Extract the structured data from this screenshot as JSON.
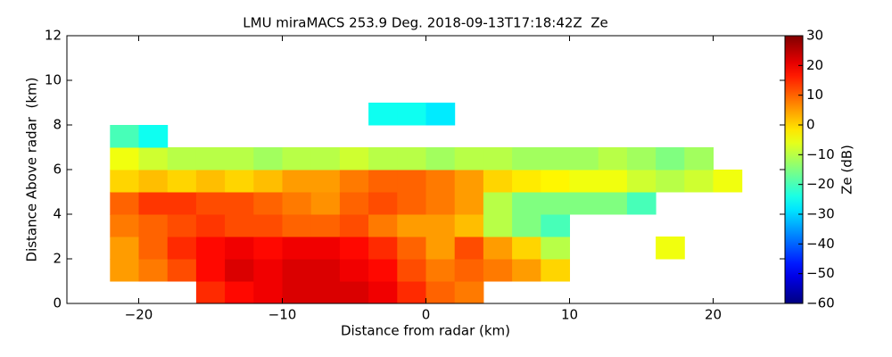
{
  "chart_data": {
    "type": "heatmap",
    "title": "LMU miraMACS 253.9 Deg. 2018-09-13T17:18:42Z  Ze",
    "x_label": "Distance from radar (km)",
    "y_label": "Distance Above radar  (km)",
    "colorbar_label": "Ze (dB)",
    "colormap": "jet",
    "xlim": [
      -25,
      25
    ],
    "xticks": [
      {
        "value": -20,
        "label": "−20"
      },
      {
        "value": -10,
        "label": "−10"
      },
      0,
      10,
      20
    ],
    "ylim": [
      0,
      12
    ],
    "yticks": [
      0,
      2,
      4,
      6,
      8,
      10,
      12
    ],
    "clim": [
      -60,
      30
    ],
    "cticks": [
      {
        "value": -60,
        "label": "−60"
      },
      {
        "value": -50,
        "label": "−50"
      },
      {
        "value": -40,
        "label": "−40"
      },
      {
        "value": -30,
        "label": "−30"
      },
      {
        "value": -20,
        "label": "−20"
      },
      {
        "value": -10,
        "label": "−10"
      },
      0,
      10,
      20,
      30
    ],
    "xbins": [
      -22,
      -20,
      -18,
      -16,
      -14,
      -12,
      -10,
      -8,
      -6,
      -4,
      -2,
      0,
      2,
      4,
      6,
      8,
      10,
      12,
      14,
      16,
      18,
      20,
      22
    ],
    "ybins": [
      0,
      1,
      2,
      3,
      4,
      5,
      6,
      7,
      8,
      9
    ],
    "z": [
      [
        null,
        null,
        null,
        15,
        18,
        20,
        22,
        22,
        22,
        20,
        15,
        10,
        8,
        null,
        null,
        null,
        null,
        null,
        null,
        null,
        null,
        null
      ],
      [
        5,
        8,
        12,
        18,
        22,
        20,
        22,
        22,
        20,
        18,
        12,
        8,
        10,
        8,
        5,
        0,
        null,
        null,
        null,
        null,
        null,
        null
      ],
      [
        5,
        10,
        15,
        18,
        20,
        18,
        20,
        20,
        18,
        15,
        10,
        5,
        12,
        5,
        0,
        -10,
        null,
        null,
        null,
        -5,
        null,
        null
      ],
      [
        8,
        10,
        12,
        14,
        12,
        12,
        10,
        10,
        12,
        8,
        5,
        5,
        2,
        -10,
        -15,
        -20,
        null,
        null,
        null,
        null,
        null,
        null
      ],
      [
        10,
        14,
        14,
        12,
        12,
        10,
        8,
        6,
        10,
        12,
        10,
        8,
        5,
        -10,
        -15,
        -15,
        -15,
        -15,
        -20,
        null,
        null,
        null
      ],
      [
        0,
        2,
        0,
        2,
        0,
        2,
        5,
        5,
        8,
        10,
        10,
        8,
        5,
        0,
        -2,
        -3,
        -5,
        -5,
        -8,
        -10,
        -8,
        -5
      ],
      [
        -5,
        -8,
        -10,
        -10,
        -10,
        -12,
        -10,
        -10,
        -8,
        -10,
        -10,
        -12,
        -10,
        -10,
        -12,
        -12,
        -12,
        -10,
        -12,
        -15,
        -12,
        null
      ],
      [
        -20,
        -25,
        null,
        null,
        null,
        null,
        null,
        null,
        null,
        null,
        null,
        null,
        null,
        null,
        null,
        null,
        null,
        null,
        null,
        null,
        null,
        null
      ],
      [
        null,
        null,
        null,
        null,
        null,
        null,
        null,
        null,
        null,
        -25,
        -25,
        -28,
        null,
        null,
        null,
        null,
        null,
        null,
        null,
        null,
        null,
        null
      ]
    ]
  }
}
